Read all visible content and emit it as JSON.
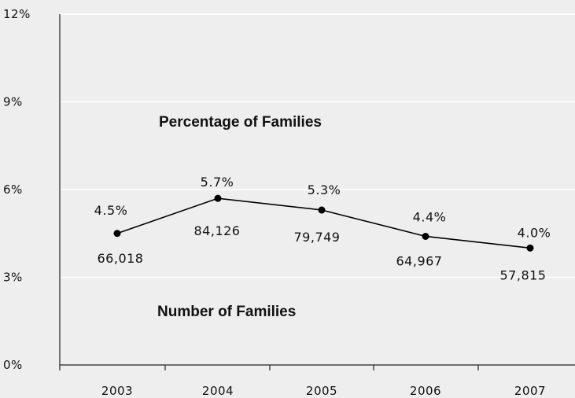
{
  "chart_data": {
    "type": "line",
    "categories": [
      "2003",
      "2004",
      "2005",
      "2006",
      "2007"
    ],
    "series": [
      {
        "values": [
          4.5,
          5.7,
          5.3,
          4.4,
          4.0
        ],
        "value_labels": [
          "4.5%",
          "5.7%",
          "5.3%",
          "4.4%",
          "4.0%"
        ],
        "family_counts": [
          "66,018",
          "84,126",
          "79,749",
          "64,967",
          "57,815"
        ]
      }
    ],
    "title": "",
    "xlabel": "",
    "ylabel": "",
    "ylim": [
      0,
      12
    ],
    "yticks": [
      0,
      3,
      6,
      9,
      12
    ],
    "ytick_labels": [
      "0%",
      "3%",
      "6%",
      "9%",
      "12%"
    ],
    "annotations": {
      "percentage": "Percentage of Families",
      "number": "Number of Families"
    },
    "grid": true,
    "grid_color": "#ffffff",
    "line_color": "#000000",
    "background": "#eeeeee"
  }
}
